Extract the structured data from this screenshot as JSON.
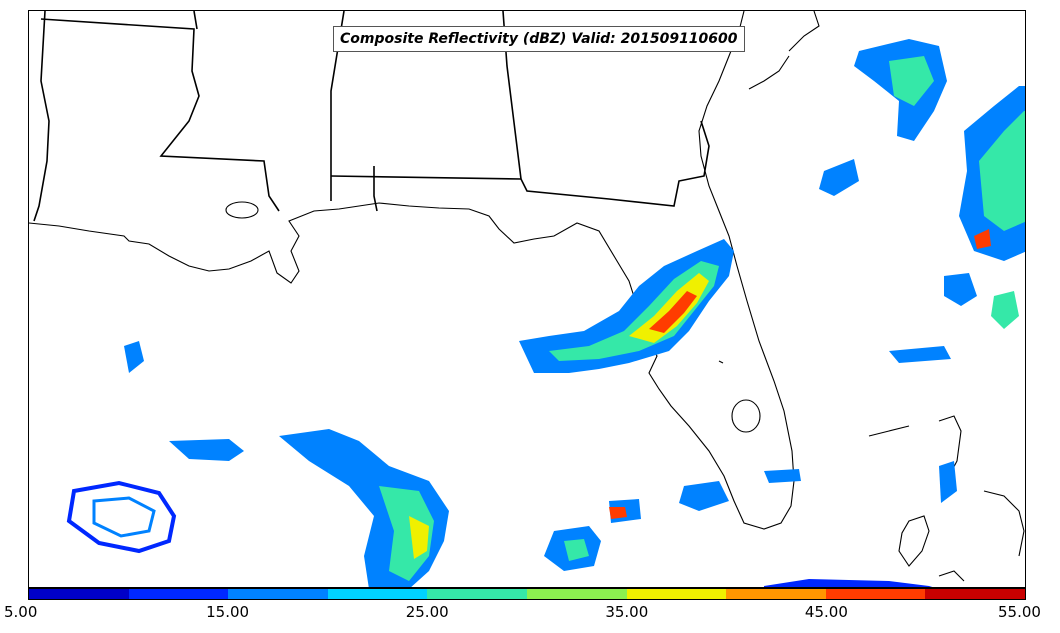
{
  "title": "Composite Reflectivity (dBZ) Valid: 201509110600",
  "colorbar": {
    "colors": [
      "#0000c8",
      "#0028ff",
      "#0082ff",
      "#00d2ff",
      "#35e8a8",
      "#8cf050",
      "#f0f000",
      "#ff9600",
      "#ff3c00",
      "#c80000"
    ],
    "tick_labels": [
      "5.00",
      "15.00",
      "25.00",
      "35.00",
      "45.00",
      "55.00"
    ],
    "min": 5,
    "max": 55
  }
}
